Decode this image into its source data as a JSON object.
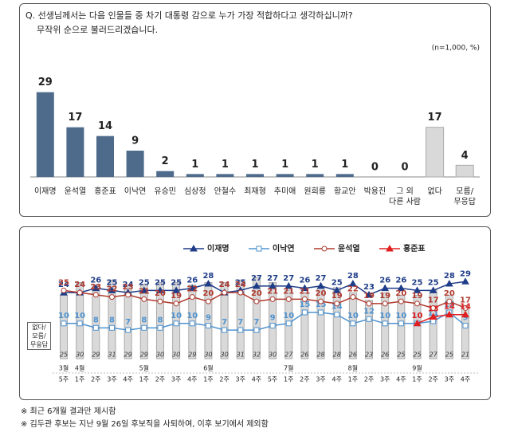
{
  "chart_data": [
    {
      "type": "bar",
      "title": "Q. 선생님께서는 다음 인물들 중 차기 대통령 감으로 누가 가장 적합하다고 생각하십니까?",
      "subtitle": "무작위 순으로 불러드리겠습니다.",
      "note": "(n=1,000, %)",
      "categories": [
        "이재명",
        "윤석열",
        "홍준표",
        "이낙연",
        "유승민",
        "심상정",
        "안철수",
        "최재형",
        "추미애",
        "원희룡",
        "황교안",
        "박용진",
        "그 외\n다른 사람",
        "없다",
        "모름/\n무응답"
      ],
      "values": [
        29,
        17,
        14,
        9,
        2,
        1,
        1,
        1,
        1,
        1,
        1,
        0,
        0,
        17,
        4
      ],
      "colors": [
        "#4e6b8c",
        "#4e6b8c",
        "#4e6b8c",
        "#4e6b8c",
        "#4e6b8c",
        "#4e6b8c",
        "#4e6b8c",
        "#4e6b8c",
        "#4e6b8c",
        "#4e6b8c",
        "#4e6b8c",
        "#4e6b8c",
        "#4e6b8c",
        "#d9d9d9",
        "#d9d9d9"
      ],
      "ylim": [
        0,
        30
      ]
    },
    {
      "type": "line",
      "legend": "top",
      "months": [
        "3월",
        "4월",
        null,
        null,
        null,
        "5월",
        null,
        null,
        null,
        "6월",
        null,
        null,
        null,
        null,
        "7월",
        null,
        null,
        null,
        "8월",
        null,
        null,
        null,
        "9월",
        null,
        null,
        null
      ],
      "categories": [
        "5주",
        "1주",
        "2주",
        "3주",
        "4주",
        "1주",
        "2주",
        "3주",
        "4주",
        "1주",
        "2주",
        "3주",
        "4주",
        "5주",
        "1주",
        "2주",
        "3주",
        "4주",
        "1주",
        "2주",
        "3주",
        "4주",
        "1주",
        "2주",
        "3주",
        "4주"
      ],
      "ylim": [
        -6,
        32
      ],
      "y2lim": [
        0,
        33
      ],
      "series": [
        {
          "name": "없다/\n모름/\n무응답",
          "type": "bar",
          "axis": "y2",
          "color": "#d9d9d9",
          "values": [
            25,
            30,
            29,
            31,
            29,
            29,
            30,
            30,
            29,
            30,
            30,
            31,
            32,
            30,
            27,
            26,
            28,
            28,
            26,
            23,
            26,
            25,
            25,
            27,
            25,
            21
          ]
        },
        {
          "name": "이재명",
          "color": "#1f3c88",
          "marker": "triangle",
          "filled": true,
          "values": [
            24,
            24,
            26,
            25,
            24,
            25,
            25,
            25,
            26,
            28,
            24,
            25,
            27,
            27,
            27,
            26,
            27,
            25,
            28,
            23,
            26,
            26,
            25,
            25,
            28,
            29
          ]
        },
        {
          "name": "이낙연",
          "color": "#4f93cf",
          "marker": "square",
          "filled": false,
          "values": [
            10,
            10,
            8,
            8,
            7,
            8,
            8,
            10,
            10,
            9,
            7,
            7,
            7,
            9,
            10,
            15,
            15,
            14,
            10,
            12,
            10,
            10,
            10,
            11,
            15,
            9
          ]
        },
        {
          "name": "윤석열",
          "color": "#b03a2e",
          "marker": "circle",
          "filled": false,
          "values": [
            25,
            24,
            23,
            22,
            23,
            21,
            20,
            19,
            22,
            20,
            24,
            24,
            20,
            21,
            21,
            21,
            20,
            19,
            22,
            19,
            19,
            20,
            19,
            17,
            20,
            17
          ]
        },
        {
          "name": "홍준표",
          "color": "#e02020",
          "marker": "triangle",
          "filled": true,
          "values": [
            null,
            null,
            null,
            null,
            null,
            null,
            null,
            null,
            null,
            null,
            null,
            null,
            null,
            null,
            null,
            null,
            null,
            null,
            null,
            null,
            null,
            null,
            10,
            13,
            14,
            14
          ]
        }
      ]
    }
  ],
  "footnotes": [
    "※ 최근 6개월 결과만 제시함",
    "※ 김두관 후보는 지난 9월 26일 후보직을 사퇴하여, 이후 보기에서 제외함"
  ]
}
